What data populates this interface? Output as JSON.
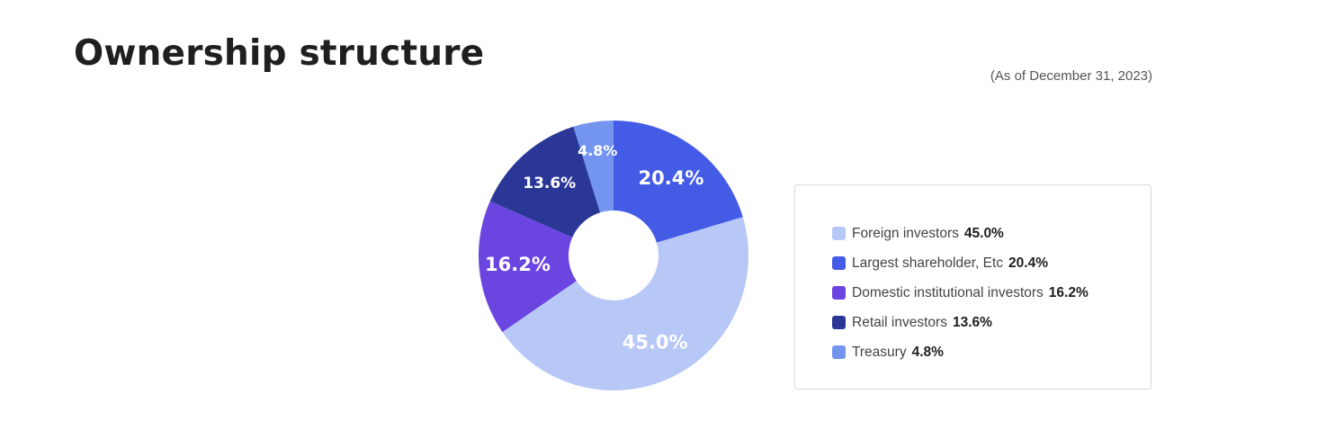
{
  "page": {
    "title": "Ownership structure",
    "as_of": "(As of December 31, 2023)"
  },
  "chart_data": {
    "type": "pie",
    "donut": true,
    "slices": [
      {
        "label": "Largest shareholder, Etc",
        "value": 20.4,
        "display": "20.4%",
        "color": "#445BE6"
      },
      {
        "label": "Foreign investors",
        "value": 45.0,
        "display": "45.0%",
        "color": "#B7C7F6"
      },
      {
        "label": "Domestic institutional investors",
        "value": 16.2,
        "display": "16.2%",
        "color": "#6B45E0"
      },
      {
        "label": "Retail investors",
        "value": 13.6,
        "display": "13.6%",
        "color": "#2A3796"
      },
      {
        "label": "Treasury",
        "value": 4.8,
        "display": "4.8%",
        "color": "#7395F0"
      }
    ]
  },
  "legend": {
    "items": [
      {
        "name": "Foreign investors",
        "value": "45.0%",
        "color": "#B7C7F6"
      },
      {
        "name": "Largest shareholder, Etc",
        "value": "20.4%",
        "color": "#445BE6"
      },
      {
        "name": "Domestic institutional investors",
        "value": "16.2%",
        "color": "#6B45E0"
      },
      {
        "name": "Retail investors ",
        "value": "13.6%",
        "color": "#2A3796"
      },
      {
        "name": "Treasury",
        "value": "4.8%",
        "color": "#7395F0"
      }
    ]
  }
}
